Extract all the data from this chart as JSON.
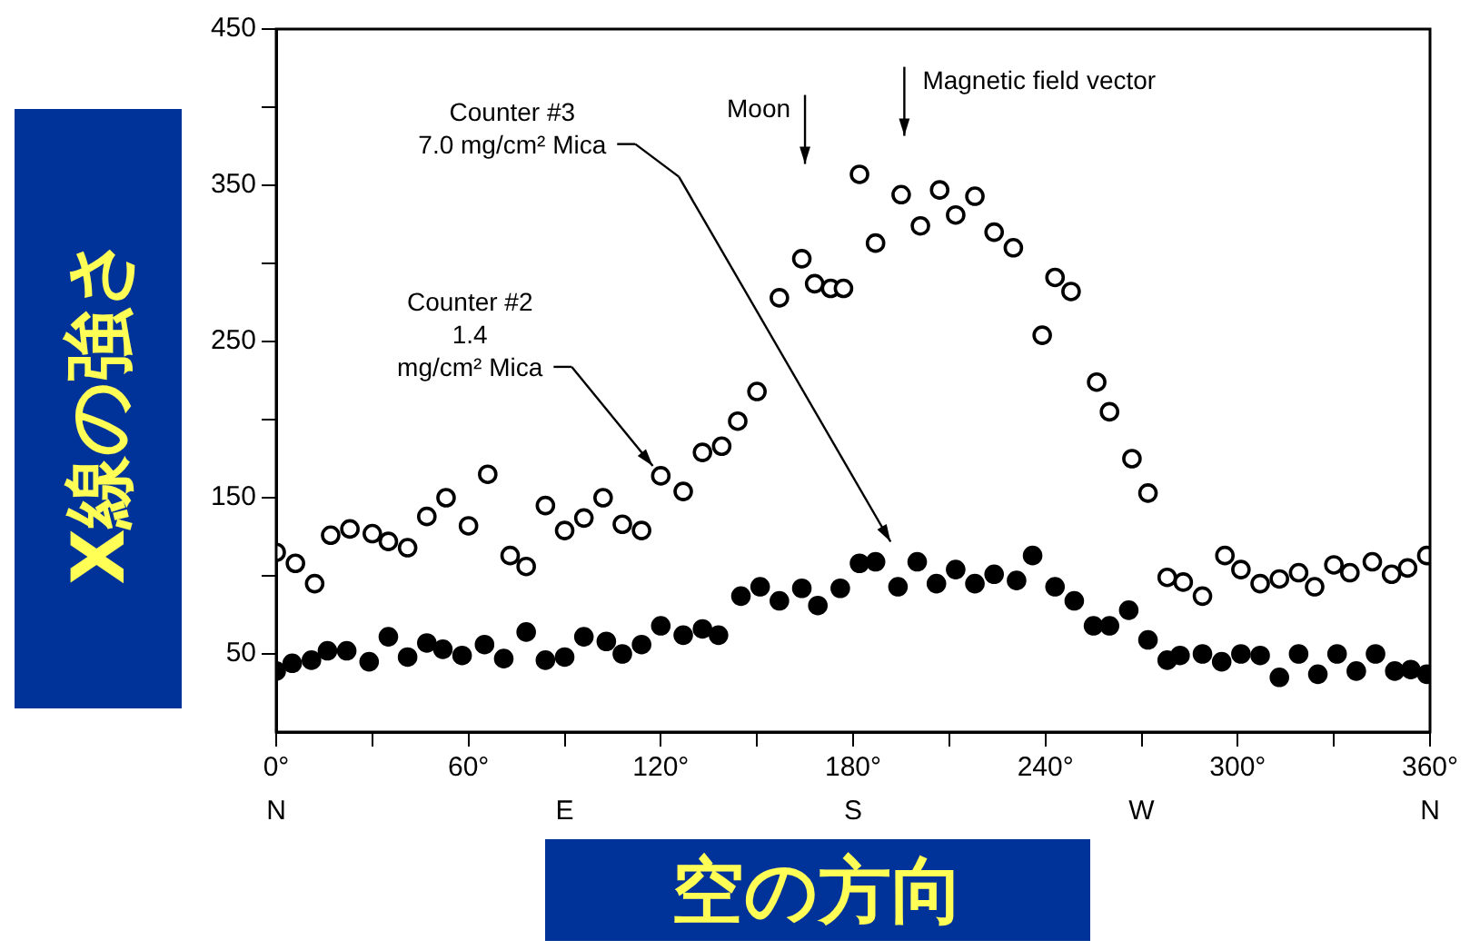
{
  "chart_data": {
    "type": "scatter",
    "xlabel": "空の方向",
    "ylabel": "X線の強さ",
    "xlim": [
      0,
      360
    ],
    "xticks": [
      {
        "value": 0,
        "label": "0°"
      },
      {
        "value": 30,
        "label": null
      },
      {
        "value": 60,
        "label": "60°"
      },
      {
        "value": 90,
        "label": null
      },
      {
        "value": 120,
        "label": "120°"
      },
      {
        "value": 150,
        "label": null
      },
      {
        "value": 180,
        "label": "180°"
      },
      {
        "value": 210,
        "label": null
      },
      {
        "value": 240,
        "label": "240°"
      },
      {
        "value": 270,
        "label": null
      },
      {
        "value": 300,
        "label": "300°"
      },
      {
        "value": 330,
        "label": null
      },
      {
        "value": 360,
        "label": "360°"
      }
    ],
    "ylim": [
      0,
      450
    ],
    "yticks": [
      50,
      {
        "value": 100,
        "label": null
      },
      150,
      {
        "value": 200,
        "label": null
      },
      250,
      {
        "value": 300,
        "label": null
      },
      350,
      {
        "value": 400,
        "label": null
      },
      450
    ],
    "grid": false,
    "legend": false,
    "marker": "circle",
    "series": [
      {
        "color": "#000000",
        "x": [
          0,
          6,
          12,
          17,
          23,
          30,
          35,
          41,
          47,
          53,
          60,
          66,
          73,
          78,
          84,
          90,
          96,
          102,
          108,
          114,
          120,
          127,
          133,
          139,
          144,
          150,
          157,
          164,
          168,
          173,
          177,
          182,
          187,
          195,
          201,
          207,
          212,
          218,
          224,
          230,
          239,
          243,
          248,
          256,
          260,
          267,
          272,
          278,
          283,
          289,
          296,
          301,
          307,
          313,
          319,
          324,
          330,
          335,
          342,
          348,
          353,
          359
        ],
        "values": [
          115,
          108,
          95,
          126,
          130,
          127,
          122,
          118,
          138,
          150,
          132,
          165,
          113,
          106,
          145,
          129,
          137,
          150,
          133,
          129,
          164,
          154,
          179,
          183,
          199,
          218,
          278,
          303,
          287,
          284,
          284,
          357,
          313,
          344,
          324,
          347,
          331,
          343,
          320,
          310,
          254,
          291,
          282,
          224,
          205,
          175,
          153,
          99,
          96,
          87,
          113,
          104,
          95,
          98,
          102,
          93,
          107,
          102,
          109,
          101,
          105,
          113
        ]
      },
      {
        "color": "#000000",
        "x": [
          0,
          5,
          11,
          16,
          22,
          29,
          35,
          41,
          47,
          52,
          58,
          65,
          71,
          78,
          84,
          90,
          96,
          103,
          108,
          114,
          120,
          127,
          133,
          138,
          145,
          151,
          157,
          164,
          169,
          176,
          182,
          187,
          194,
          200,
          206,
          212,
          218,
          224,
          231,
          236,
          243,
          249,
          255,
          260,
          266,
          272,
          278,
          282,
          289,
          295,
          301,
          307,
          313,
          319,
          325,
          331,
          337,
          343,
          349,
          354,
          359
        ],
        "values": [
          39,
          44,
          46,
          52,
          52,
          45,
          61,
          48,
          57,
          53,
          49,
          56,
          47,
          64,
          46,
          48,
          61,
          58,
          50,
          56,
          68,
          62,
          66,
          62,
          87,
          93,
          84,
          92,
          81,
          92,
          108,
          109,
          93,
          109,
          95,
          104,
          95,
          101,
          97,
          113,
          93,
          84,
          68,
          68,
          78,
          59,
          46,
          49,
          50,
          45,
          50,
          49,
          35,
          50,
          37,
          50,
          39,
          50,
          39,
          40,
          37
        ]
      }
    ],
    "annotations": [
      "Counter #3\n7.0 mg/cm² Mica",
      {
        "text": "Counter #2\n1.4\nmg/cm² Mica",
        "x": 120,
        "y": 164
      },
      "Moon",
      "Magnetic field vector",
      "N",
      "E",
      "S",
      "W",
      "N"
    ]
  }
}
